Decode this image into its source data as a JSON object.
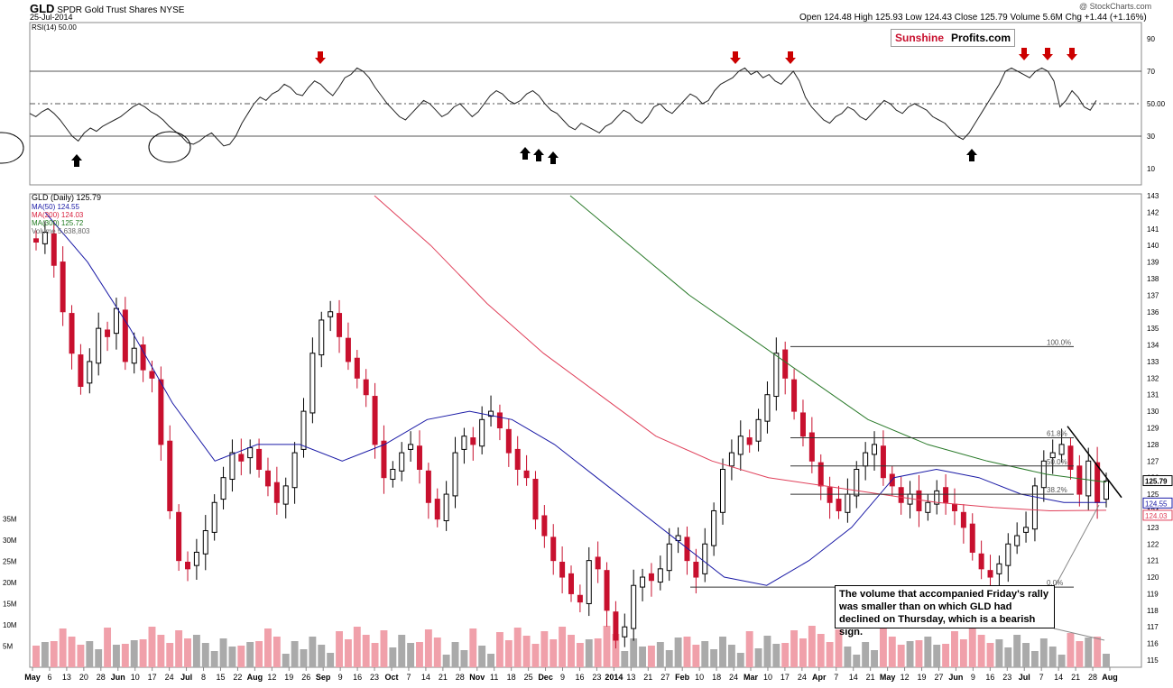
{
  "header": {
    "symbol": "GLD",
    "name": "SPDR Gold Trust Shares",
    "exchange": "NYSE",
    "date": "25-Jul-2014",
    "ohlc": "Open 124.48  High 125.93  Low 124.43  Close 125.79  Volume 5.6M  Chg +1.44 (+1.16%)",
    "watermark": "@ StockCharts.com"
  },
  "brand": {
    "part1": "Sunshine",
    "part2": "Profits.com"
  },
  "rsi_label": "RSI(14) 50.00",
  "price_label": "GLD (Daily) 125.79",
  "ma_labels": [
    {
      "text": "MA(50) 124.55",
      "color": "#1a1aa6"
    },
    {
      "text": "MA(200) 124.03",
      "color": "#d81e3c"
    },
    {
      "text": "MA(300) 125.72",
      "color": "#1f7a1f"
    },
    {
      "text": "Volume 5,638,803",
      "color": "#666666"
    }
  ],
  "annotation": "The volume that accompanied Friday's rally was smaller than on which GLD had declined on Thursday, which is a bearish sign.",
  "colors": {
    "up": "#000000",
    "down": "#c8102e",
    "ma50": "#1a1aa6",
    "ma200": "#e0405a",
    "ma300": "#2a7a2a",
    "arrow_red": "#cc0000",
    "vol_up": "#aaaaaa",
    "vol_down": "#f0a0aa"
  },
  "chart_data": [
    {
      "type": "line",
      "title": "RSI(14) 50.00",
      "ylim": [
        0,
        100
      ],
      "yticks": [
        "90",
        "70",
        "50.00",
        "30",
        "10"
      ],
      "levels": [
        70,
        50,
        30
      ],
      "series": [
        {
          "name": "RSI(14)",
          "values": [
            44,
            42,
            45,
            47,
            44,
            40,
            35,
            30,
            27,
            32,
            35,
            33,
            36,
            38,
            40,
            42,
            45,
            48,
            50,
            48,
            45,
            43,
            40,
            36,
            33,
            30,
            26,
            25,
            27,
            30,
            32,
            28,
            24,
            25,
            30,
            38,
            44,
            50,
            54,
            52,
            56,
            58,
            62,
            60,
            56,
            55,
            60,
            64,
            62,
            58,
            55,
            60,
            66,
            68,
            72,
            70,
            66,
            60,
            55,
            50,
            46,
            42,
            40,
            44,
            48,
            52,
            50,
            46,
            42,
            44,
            48,
            50,
            46,
            42,
            45,
            50,
            55,
            58,
            56,
            52,
            50,
            52,
            56,
            58,
            55,
            50,
            46,
            44,
            40,
            36,
            34,
            38,
            36,
            34,
            32,
            36,
            38,
            42,
            46,
            44,
            40,
            38,
            42,
            48,
            50,
            46,
            44,
            48,
            52,
            56,
            54,
            50,
            52,
            58,
            62,
            64,
            66,
            70,
            72,
            68,
            70,
            66,
            68,
            64,
            62,
            66,
            70,
            64,
            54,
            48,
            44,
            40,
            38,
            42,
            44,
            48,
            46,
            42,
            40,
            44,
            48,
            52,
            50,
            46,
            44,
            48,
            50,
            48,
            46,
            42,
            40,
            38,
            34,
            30,
            28,
            32,
            38,
            44,
            50,
            56,
            62,
            70,
            72,
            70,
            68,
            66,
            70,
            72,
            70,
            64,
            48,
            52,
            58,
            54,
            48,
            46,
            52
          ]
        }
      ]
    },
    {
      "type": "line",
      "title": "GLD (Daily) 125.79",
      "ylim": [
        115,
        143
      ],
      "yticks": [
        "143",
        "142",
        "141",
        "140",
        "139",
        "138",
        "137",
        "136",
        "135",
        "134",
        "133",
        "132",
        "131",
        "130",
        "129",
        "128",
        "127",
        "126",
        "125",
        "124",
        "123",
        "122",
        "121",
        "120",
        "119",
        "118",
        "117",
        "116",
        "115"
      ],
      "xticks": [
        "May",
        "6",
        "13",
        "20",
        "28",
        "Jun",
        "10",
        "17",
        "24",
        "Jul",
        "8",
        "15",
        "22",
        "Aug",
        "12",
        "19",
        "26",
        "Sep",
        "9",
        "16",
        "23",
        "Oct",
        "7",
        "14",
        "21",
        "28",
        "Nov",
        "11",
        "18",
        "25",
        "Dec",
        "9",
        "16",
        "23",
        "2014",
        "13",
        "21",
        "27",
        "Feb",
        "10",
        "18",
        "24",
        "Mar",
        "10",
        "17",
        "24",
        "Apr",
        "7",
        "14",
        "21",
        "May",
        "12",
        "19",
        "27",
        "Jun",
        "9",
        "16",
        "23",
        "Jul",
        "7",
        "14",
        "21",
        "28",
        "Aug"
      ],
      "volume_ticks": [
        "35M",
        "30M",
        "25M",
        "20M",
        "15M",
        "10M",
        "5M"
      ],
      "price_labels": [
        "125.79",
        "124.55",
        "124.03"
      ],
      "fib_labels": [
        "100.0%",
        "61.8%",
        "50.0%",
        "38.2%",
        "0.0%"
      ],
      "fib_levels": [
        133.9,
        128.4,
        126.7,
        125.0,
        119.4
      ],
      "series": [
        {
          "name": "GLD close",
          "values": [
            140.2,
            140.8,
            138.8,
            136.0,
            133.5,
            131.5,
            133.0,
            135.0,
            134.5,
            136.2,
            133.0,
            133.8,
            132.5,
            132.0,
            128.0,
            124.0,
            121.0,
            120.5,
            121.5,
            122.8,
            124.5,
            126.0,
            127.5,
            127.0,
            127.8,
            126.5,
            125.5,
            124.5,
            125.5,
            127.5,
            130.0,
            133.5,
            135.5,
            136.0,
            134.5,
            133.0,
            132.0,
            131.0,
            128.0,
            126.0,
            126.5,
            127.5,
            128.0,
            126.5,
            124.5,
            123.5,
            125.0,
            127.5,
            128.5,
            128.0,
            129.5,
            130.0,
            129.0,
            127.5,
            126.5,
            126.0,
            123.5,
            122.5,
            121.0,
            120.0,
            119.0,
            118.5,
            121.0,
            120.5,
            118.0,
            116.2,
            117.0,
            119.5,
            120.0,
            119.8,
            120.5,
            122.0,
            122.5,
            121.0,
            120.0,
            122.0,
            124.0,
            126.5,
            127.5,
            128.5,
            128.0,
            129.5,
            131.0,
            133.5,
            132.0,
            130.0,
            128.5,
            127.0,
            125.5,
            124.5,
            124.0,
            125.0,
            126.5,
            127.5,
            128.0,
            126.0,
            125.5,
            124.5,
            125.0,
            124.0,
            124.5,
            125.2,
            124.5,
            124.0,
            123.0,
            121.5,
            120.5,
            120.0,
            120.8,
            122.0,
            122.5,
            123.0,
            125.5,
            127.0,
            127.5,
            128.0,
            126.5,
            125.0,
            127.0,
            124.5,
            125.8
          ]
        },
        {
          "name": "MA(50)",
          "values": [
            142.0,
            139.0,
            135.0,
            130.5,
            127.0,
            128.0,
            128.0,
            127.0,
            128.0,
            129.5,
            130.0,
            129.5,
            128.0,
            126.0,
            124.0,
            122.0,
            120.0,
            119.5,
            121.0,
            123.0,
            126.0,
            126.5,
            126.0,
            125.0,
            124.5,
            124.5
          ]
        },
        {
          "name": "MA(200)",
          "values": [
            143.0,
            140.0,
            136.5,
            133.5,
            131.0,
            128.5,
            127.0,
            126.0,
            125.5,
            125.0,
            124.5,
            124.2,
            124.0,
            124.03
          ]
        },
        {
          "name": "MA(300)",
          "values": [
            143.0,
            140.0,
            137.0,
            134.5,
            132.0,
            129.5,
            128.0,
            127.0,
            126.2,
            125.72
          ]
        }
      ]
    }
  ]
}
